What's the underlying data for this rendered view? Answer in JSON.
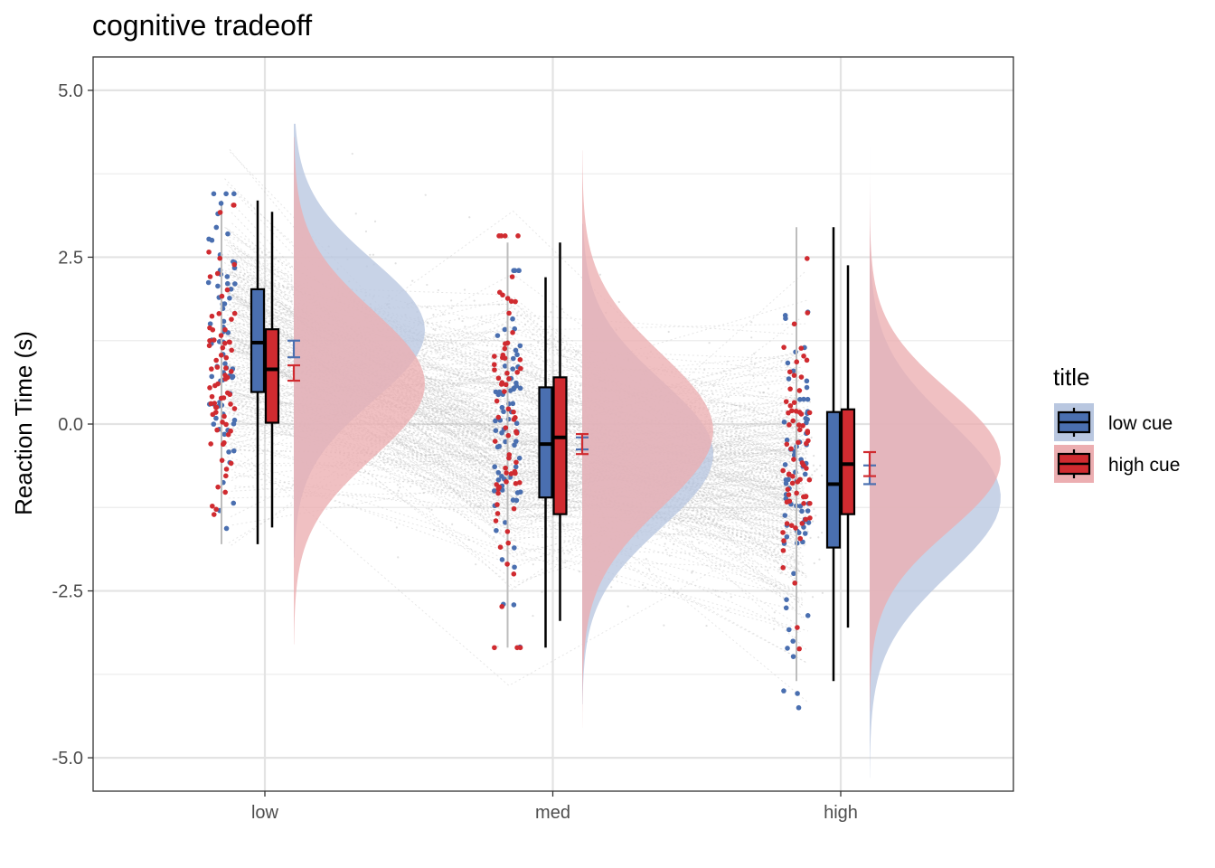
{
  "chart_data": {
    "type": "raincloud",
    "title": "cognitive tradeoff",
    "xlabel": "",
    "ylabel": "Reaction Time (s)",
    "categories": [
      "low",
      "med",
      "high"
    ],
    "ylim": [
      -5.5,
      5.5
    ],
    "yticks": [
      5.0,
      2.5,
      0.0,
      -2.5,
      -5.0
    ],
    "ytick_labels": [
      "5.0",
      "2.5",
      "0.0",
      "-2.5",
      "-5.0"
    ],
    "grid": true,
    "legend": {
      "title": "title",
      "position": "right"
    },
    "series": [
      {
        "name": "low cue",
        "color": "#4a6fb0",
        "fill": "#b9c7e0",
        "box": [
          {
            "category": "low",
            "min": -1.8,
            "q1": 0.48,
            "median": 1.22,
            "q3": 2.02,
            "max": 3.35
          },
          {
            "category": "med",
            "min": -3.35,
            "q1": -1.1,
            "median": -0.3,
            "q3": 0.55,
            "max": 2.2
          },
          {
            "category": "high",
            "min": -3.85,
            "q1": -1.85,
            "median": -0.9,
            "q3": 0.18,
            "max": 2.95
          }
        ],
        "mean_ci": [
          {
            "category": "low",
            "mean": 1.1,
            "lo": 1.0,
            "hi": 1.25
          },
          {
            "category": "med",
            "mean": -0.3,
            "lo": -0.38,
            "hi": -0.2
          },
          {
            "category": "high",
            "mean": -0.72,
            "lo": -0.9,
            "hi": -0.62
          }
        ],
        "density": [
          {
            "category": "low",
            "mean": 1.4,
            "sd": 1.05,
            "lo": -2.0,
            "hi": 4.5
          },
          {
            "category": "med",
            "mean": -0.45,
            "sd": 1.1,
            "lo": -4.2,
            "hi": 3.0
          },
          {
            "category": "high",
            "mean": -1.1,
            "sd": 1.15,
            "lo": -5.3,
            "hi": 4.4
          }
        ]
      },
      {
        "name": "high cue",
        "color": "#d02b30",
        "fill": "#ecaeb1",
        "box": [
          {
            "category": "low",
            "min": -1.55,
            "q1": 0.02,
            "median": 0.82,
            "q3": 1.42,
            "max": 3.18
          },
          {
            "category": "med",
            "min": -2.95,
            "q1": -1.35,
            "median": -0.2,
            "q3": 0.7,
            "max": 2.72
          },
          {
            "category": "high",
            "min": -3.05,
            "q1": -1.35,
            "median": -0.6,
            "q3": 0.22,
            "max": 2.38
          }
        ],
        "mean_ci": [
          {
            "category": "low",
            "mean": 0.78,
            "lo": 0.65,
            "hi": 0.88
          },
          {
            "category": "med",
            "mean": -0.3,
            "lo": -0.45,
            "hi": -0.15
          },
          {
            "category": "high",
            "mean": -0.62,
            "lo": -0.78,
            "hi": -0.42
          }
        ],
        "density": [
          {
            "category": "low",
            "mean": 0.6,
            "sd": 1.1,
            "lo": -3.3,
            "hi": 4.3
          },
          {
            "category": "med",
            "mean": -0.1,
            "sd": 1.15,
            "lo": -4.55,
            "hi": 4.1
          },
          {
            "category": "high",
            "mean": -0.55,
            "sd": 1.05,
            "lo": -4.3,
            "hi": 3.7
          }
        ]
      }
    ]
  }
}
